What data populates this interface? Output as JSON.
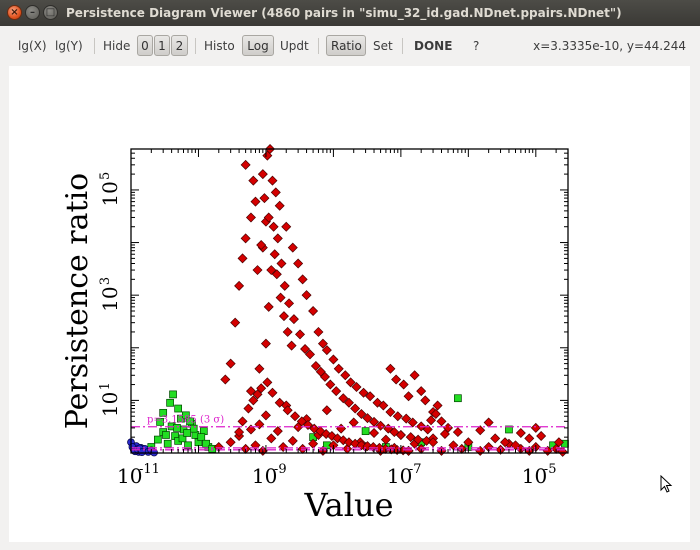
{
  "window": {
    "title": "Persistence Diagram Viewer (4860 pairs in \"simu_32_id.gad.NDnet.ppairs.NDnet\")",
    "close_glyph": "×",
    "minimize_glyph": "–",
    "maximize_glyph": "□"
  },
  "toolbar": {
    "lgx": "lg(X)",
    "lgy": "lg(Y)",
    "hide_label": "Hide",
    "hide_buttons": [
      "0",
      "1",
      "2"
    ],
    "histo": "Histo",
    "log": "Log",
    "updt": "Updt",
    "ratio": "Ratio",
    "set": "Set",
    "done": "DONE",
    "help": "?",
    "coords": "x=3.3335e-10, y=44.244"
  },
  "colors": {
    "red_points": "#d40000",
    "green_points": "#22dd22",
    "blue_points": "#2a2acc",
    "threshold_line": "#dd22cc"
  },
  "chart_data": {
    "type": "scatter",
    "xlabel": "Value",
    "ylabel": "Persistence ratio",
    "x_scale": "log",
    "y_scale": "log",
    "xlim": [
      1e-11,
      3e-05
    ],
    "ylim": [
      1,
      600000
    ],
    "x_ticks": [
      {
        "value": 1e-11,
        "base": "10",
        "exp": "-11"
      },
      {
        "value": 1e-09,
        "base": "10",
        "exp": "-9"
      },
      {
        "value": 1e-07,
        "base": "10",
        "exp": "-7"
      },
      {
        "value": 1e-05,
        "base": "10",
        "exp": "-5"
      }
    ],
    "y_ticks": [
      {
        "value": 10,
        "base": "10",
        "exp": "1"
      },
      {
        "value": 1000,
        "base": "10",
        "exp": "3"
      },
      {
        "value": 100000,
        "base": "10",
        "exp": "5"
      }
    ],
    "threshold_lines": [
      {
        "y": 3.1585,
        "label": "p=3.1585 (3 σ)",
        "style": "dash-dot"
      },
      {
        "y": 1.25,
        "label": "",
        "style": "dash-dot"
      },
      {
        "y": 1.15,
        "label": "",
        "style": "dash-dot"
      }
    ],
    "series": [
      {
        "name": "",
        "marker": "diamond",
        "color": "#d40000",
        "points": [
          [
            2e-10,
            1.3
          ],
          [
            3e-10,
            1.6
          ],
          [
            4e-10,
            2.1
          ],
          [
            5e-10,
            1.2
          ],
          [
            6e-10,
            2.8
          ],
          [
            7e-10,
            1.4
          ],
          [
            8e-10,
            3.5
          ],
          [
            9e-10,
            1.1
          ],
          [
            1e-09,
            5.2
          ],
          [
            1.2e-09,
            1.9
          ],
          [
            1.5e-09,
            2.6
          ],
          [
            1.8e-09,
            1.3
          ],
          [
            2e-09,
            8
          ],
          [
            2.5e-09,
            1.7
          ],
          [
            3e-09,
            3.1
          ],
          [
            3.5e-09,
            1.2
          ],
          [
            4e-09,
            4.4
          ],
          [
            5e-09,
            1.5
          ],
          [
            6e-09,
            2.2
          ],
          [
            7e-09,
            1.1
          ],
          [
            8e-09,
            6.5
          ],
          [
            1e-08,
            1.4
          ],
          [
            1.3e-08,
            2.9
          ],
          [
            1.6e-08,
            1.2
          ],
          [
            2e-08,
            3.8
          ],
          [
            2.5e-08,
            1.6
          ],
          [
            3e-08,
            1.3
          ],
          [
            4e-08,
            2.4
          ],
          [
            5e-08,
            1.1
          ],
          [
            6e-08,
            1.8
          ],
          [
            8e-08,
            1.25
          ],
          [
            1e-07,
            2.2
          ],
          [
            1.3e-07,
            1.1
          ],
          [
            1.6e-07,
            1.5
          ],
          [
            2e-07,
            1.2
          ],
          [
            3e-07,
            1.9
          ],
          [
            4e-07,
            1.1
          ],
          [
            6e-07,
            1.4
          ],
          [
            8e-07,
            1.2
          ],
          [
            1e-06,
            1.6
          ],
          [
            1.5e-06,
            1.1
          ],
          [
            2e-06,
            1.3
          ],
          [
            3e-06,
            1.15
          ],
          [
            4e-06,
            1.5
          ],
          [
            6e-06,
            1.2
          ],
          [
            8e-06,
            1.1
          ],
          [
            1e-05,
            1.3
          ],
          [
            1.5e-05,
            1.1
          ],
          [
            2e-05,
            1.2
          ],
          [
            2.5e-05,
            1.05
          ],
          [
            6e-10,
            15
          ],
          [
            8e-10,
            40
          ],
          [
            1e-09,
            120
          ],
          [
            1.1e-09,
            600
          ],
          [
            1.2e-09,
            3000
          ],
          [
            1.3e-09,
            20000
          ],
          [
            1.15e-09,
            600000
          ],
          [
            1.05e-09,
            450000
          ],
          [
            9e-10,
            200000
          ],
          [
            1.4e-09,
            90000
          ],
          [
            7e-10,
            60000
          ],
          [
            6e-10,
            30000
          ],
          [
            5e-10,
            12000
          ],
          [
            4.5e-10,
            5000
          ],
          [
            4e-10,
            1500
          ],
          [
            3.5e-10,
            300
          ],
          [
            3e-10,
            50
          ],
          [
            2.5e-10,
            25
          ],
          [
            5e-10,
            300000
          ],
          [
            6.5e-10,
            150000
          ],
          [
            1.6e-09,
            50000
          ],
          [
            2e-09,
            20000
          ],
          [
            2.5e-09,
            8000
          ],
          [
            3e-09,
            4000
          ],
          [
            3.5e-09,
            2000
          ],
          [
            4e-09,
            1000
          ],
          [
            5e-09,
            500
          ],
          [
            6e-09,
            200
          ],
          [
            7e-09,
            120
          ],
          [
            8e-09,
            90
          ],
          [
            1e-08,
            60
          ],
          [
            1.2e-08,
            40
          ],
          [
            1.5e-08,
            30
          ],
          [
            1.8e-08,
            22
          ],
          [
            2.2e-08,
            18
          ],
          [
            2.8e-08,
            14
          ],
          [
            3.5e-08,
            12
          ],
          [
            4.5e-08,
            9
          ],
          [
            5.5e-08,
            8
          ],
          [
            7e-08,
            6
          ],
          [
            9e-08,
            5
          ],
          [
            1.2e-07,
            4.5
          ],
          [
            1.5e-07,
            3.8
          ],
          [
            2e-07,
            3.2
          ],
          [
            2.5e-07,
            2.8
          ],
          [
            3e-07,
            6
          ],
          [
            3.5e-07,
            8
          ],
          [
            4e-07,
            4
          ],
          [
            5e-07,
            3
          ],
          [
            7e-07,
            2.5
          ],
          [
            9e-10,
            8000
          ],
          [
            1e-09,
            25000
          ],
          [
            1.25e-09,
            150000
          ],
          [
            1.5e-09,
            12000
          ],
          [
            1.7e-09,
            4000
          ],
          [
            1.9e-09,
            1500
          ],
          [
            2.2e-09,
            700
          ],
          [
            2.6e-09,
            350
          ],
          [
            3.2e-09,
            180
          ],
          [
            3.8e-09,
            95
          ],
          [
            7.5e-10,
            3000
          ],
          [
            8.5e-10,
            9000
          ],
          [
            9.5e-10,
            70000
          ],
          [
            1.1e-09,
            30000
          ],
          [
            1.35e-09,
            6000
          ],
          [
            1.45e-09,
            2500
          ],
          [
            1.65e-09,
            900
          ],
          [
            1.85e-09,
            400
          ],
          [
            2.1e-09,
            200
          ],
          [
            2.4e-09,
            110
          ],
          [
            4.5e-09,
            75
          ],
          [
            5.5e-09,
            45
          ],
          [
            6.5e-09,
            35
          ],
          [
            7.5e-09,
            28
          ],
          [
            9e-09,
            20
          ],
          [
            1.1e-08,
            15
          ],
          [
            1.4e-08,
            11
          ],
          [
            1.7e-08,
            9
          ],
          [
            2.1e-08,
            7
          ],
          [
            2.6e-08,
            5.5
          ],
          [
            3.2e-08,
            4.6
          ],
          [
            4e-08,
            3.9
          ],
          [
            5e-08,
            3.3
          ],
          [
            6.5e-08,
            2.9
          ],
          [
            8e-08,
            2.5
          ],
          [
            1e-07,
            2.2
          ],
          [
            1.4e-07,
            2
          ],
          [
            1.8e-07,
            1.8
          ],
          [
            2.4e-07,
            1.7
          ],
          [
            3e-07,
            1.6
          ],
          [
            1.6e-07,
            30
          ],
          [
            2e-07,
            15
          ],
          [
            2.3e-07,
            10
          ],
          [
            1.1e-07,
            20
          ],
          [
            1.3e-07,
            12
          ],
          [
            8.5e-08,
            25
          ],
          [
            7e-08,
            40
          ],
          [
            3.3e-07,
            5.5
          ],
          [
            2.8e-07,
            4.2
          ],
          [
            4.5e-07,
            2.3
          ],
          [
            1e-05,
            3
          ],
          [
            1.2e-05,
            2.1
          ],
          [
            8e-06,
            1.9
          ],
          [
            6e-06,
            2.4
          ],
          [
            2e-06,
            3.8
          ],
          [
            1.5e-06,
            2.7
          ],
          [
            2.5e-06,
            1.9
          ],
          [
            3.5e-06,
            1.6
          ],
          [
            5e-06,
            1.4
          ],
          [
            2.2e-05,
            1.6
          ],
          [
            4e-10,
            2.5
          ],
          [
            4.5e-10,
            4
          ],
          [
            5.5e-10,
            7
          ],
          [
            6.5e-10,
            10
          ],
          [
            7.5e-10,
            13
          ],
          [
            8.5e-10,
            17
          ],
          [
            1.05e-09,
            22
          ],
          [
            1.25e-09,
            14
          ],
          [
            1.6e-09,
            9
          ],
          [
            2.1e-09,
            6.5
          ],
          [
            2.7e-09,
            5
          ],
          [
            3.4e-09,
            4
          ],
          [
            4.2e-09,
            3.4
          ],
          [
            5.2e-09,
            2.9
          ],
          [
            6.4e-09,
            2.6
          ],
          [
            7.8e-09,
            2.3
          ],
          [
            9.5e-09,
            2.1
          ],
          [
            1.15e-08,
            1.9
          ],
          [
            1.4e-08,
            1.75
          ],
          [
            1.7e-08,
            1.6
          ],
          [
            2.1e-08,
            1.5
          ],
          [
            2.6e-08,
            1.4
          ],
          [
            3.2e-08,
            1.35
          ],
          [
            3.9e-08,
            1.3
          ],
          [
            4.8e-08,
            1.25
          ],
          [
            5.9e-08,
            1.2
          ],
          [
            7.2e-08,
            1.17
          ],
          [
            8.8e-08,
            1.14
          ],
          [
            1.08e-07,
            1.12
          ],
          [
            1.3e-07,
            1.1
          ]
        ]
      },
      {
        "name": "",
        "marker": "square",
        "color": "#22dd22",
        "points": [
          [
            2e-11,
            1.3
          ],
          [
            2.5e-11,
            1.8
          ],
          [
            3e-11,
            2.5
          ],
          [
            3.5e-11,
            1.5
          ],
          [
            4e-11,
            3.2
          ],
          [
            4.5e-11,
            2.1
          ],
          [
            5e-11,
            1.7
          ],
          [
            5.5e-11,
            4.5
          ],
          [
            6e-11,
            2.8
          ],
          [
            7e-11,
            1.4
          ],
          [
            8e-11,
            3.6
          ],
          [
            9e-11,
            2.2
          ],
          [
            1e-10,
            1.6
          ],
          [
            1.2e-10,
            2.6
          ],
          [
            1.4e-10,
            1.3
          ],
          [
            3e-11,
            5.8
          ],
          [
            3.8e-11,
            9
          ],
          [
            4.2e-11,
            13
          ],
          [
            5e-11,
            7
          ],
          [
            6.5e-11,
            5.2
          ],
          [
            7.5e-11,
            4
          ],
          [
            8.5e-11,
            2.9
          ],
          [
            1.1e-10,
            2
          ],
          [
            1.3e-10,
            1.5
          ],
          [
            1.6e-10,
            1.2
          ],
          [
            2.7e-11,
            3.9
          ],
          [
            3.3e-11,
            2.2
          ],
          [
            4.8e-11,
            3
          ],
          [
            5.8e-11,
            1.9
          ],
          [
            6.8e-11,
            2.4
          ],
          [
            5e-09,
            2
          ],
          [
            8e-09,
            1.4
          ],
          [
            3e-08,
            2.6
          ],
          [
            6e-08,
            1.3
          ],
          [
            2e-07,
            1.6
          ],
          [
            7e-07,
            11
          ],
          [
            1e-06,
            1.3
          ],
          [
            4e-06,
            2.8
          ],
          [
            1.8e-05,
            1.4
          ],
          [
            2.7e-05,
            1.5
          ]
        ]
      },
      {
        "name": "",
        "marker": "circle",
        "color": "#2a2acc",
        "points": [
          [
            1e-11,
            1.6
          ],
          [
            1.1e-11,
            1.15
          ],
          [
            1.2e-11,
            1.35
          ],
          [
            1.3e-11,
            1.05
          ],
          [
            1.4e-11,
            1.25
          ],
          [
            1.5e-11,
            1.1
          ],
          [
            1.6e-11,
            1.2
          ],
          [
            1.8e-11,
            1.05
          ],
          [
            2e-11,
            1.12
          ],
          [
            2.2e-11,
            1.02
          ],
          [
            1.05e-11,
            1.3
          ],
          [
            1.15e-11,
            1.08
          ],
          [
            1.25e-11,
            1.18
          ],
          [
            1.35e-11,
            1.22
          ],
          [
            1.45e-11,
            1.04
          ]
        ]
      }
    ]
  }
}
